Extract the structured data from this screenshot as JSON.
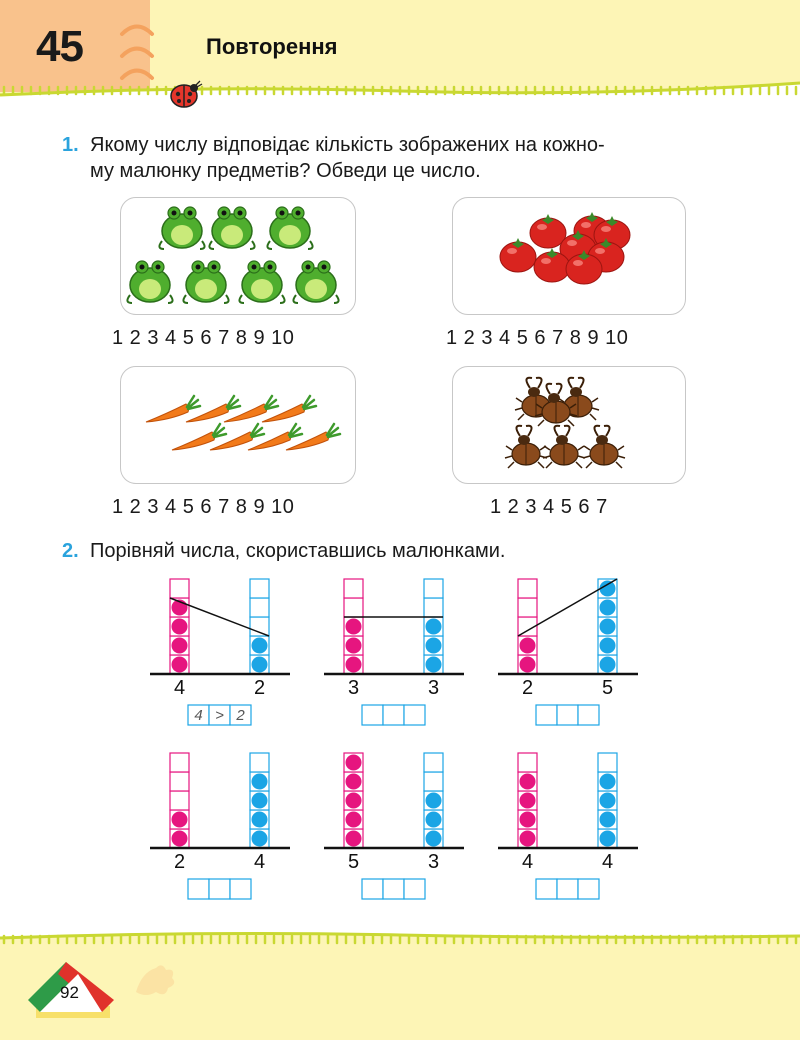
{
  "header": {
    "lesson_number": "45",
    "title": "Повторення"
  },
  "task1": {
    "number": "1.",
    "text_line1": "Якому числу відповідає кількість зображених на кожно-",
    "text_line2": "му малюнку предметів? Обведи це число.",
    "pictures": [
      {
        "subject": "frogs",
        "count": 7,
        "number_row": "1 2 3 4 5 6 7 8 9 10"
      },
      {
        "subject": "tomatoes",
        "count": 8,
        "number_row": "1 2 3 4 5 6 7 8 9 10"
      },
      {
        "subject": "carrots",
        "count": 8,
        "number_row": "1 2 3 4 5 6 7 8 9 10"
      },
      {
        "subject": "beetles",
        "count": 6,
        "number_row": "1 2 3 4 5 6 7"
      }
    ]
  },
  "task2": {
    "number": "2.",
    "text": "Порівняй числа, скориставшись малюнками.",
    "comparisons": [
      {
        "left": "4",
        "right": "2",
        "answer": [
          "4",
          ">",
          "2"
        ]
      },
      {
        "left": "3",
        "right": "3",
        "answer": [
          "",
          "",
          ""
        ]
      },
      {
        "left": "2",
        "right": "5",
        "answer": [
          "",
          "",
          ""
        ]
      },
      {
        "left": "2",
        "right": "4",
        "answer": [
          "",
          "",
          ""
        ]
      },
      {
        "left": "5",
        "right": "3",
        "answer": [
          "",
          "",
          ""
        ]
      },
      {
        "left": "4",
        "right": "4",
        "answer": [
          "",
          "",
          ""
        ]
      }
    ]
  },
  "footer": {
    "page_number": "92"
  },
  "colors": {
    "accent_blue": "#2aa3dd",
    "magenta": "#e6157f",
    "cyan": "#1ba5e5",
    "header_yellow": "#fdf5b6",
    "header_orange": "#f9c28c",
    "grass": "#c9d832"
  }
}
